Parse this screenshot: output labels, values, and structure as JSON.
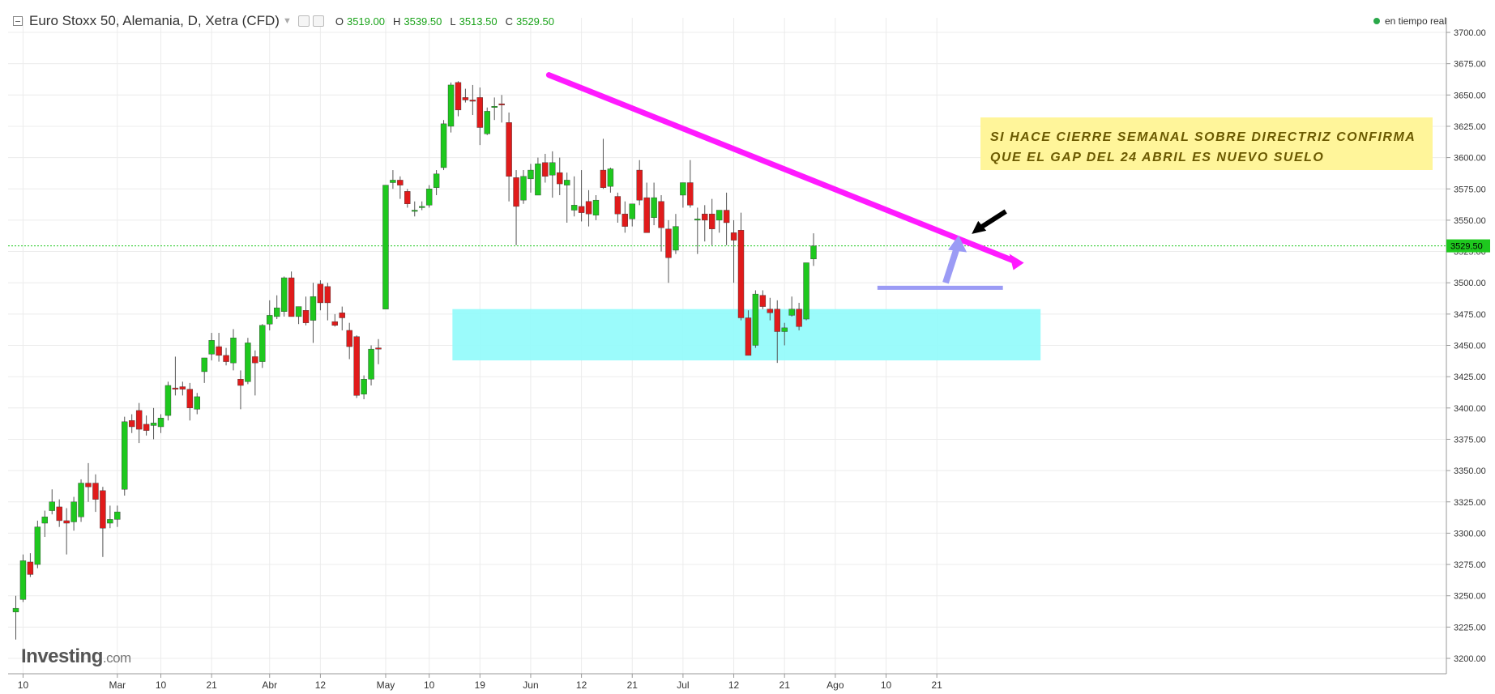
{
  "header": {
    "title": "Euro Stoxx 50, Alemania, D, Xetra (CFD)",
    "ohlc": [
      {
        "key": "O",
        "value": "3519.00"
      },
      {
        "key": "H",
        "value": "3539.50"
      },
      {
        "key": "L",
        "value": "3513.50"
      },
      {
        "key": "C",
        "value": "3529.50"
      }
    ],
    "realtime_label": "en tiempo real"
  },
  "logo": {
    "text": "Investing",
    "suffix": ".com"
  },
  "annotation": {
    "line1": "SI HACE CIERRE SEMANAL SOBRE DIRECTRIZ CONFIRMA",
    "line2": "QUE EL GAP DEL 24 ABRIL ES  NUEVO SUELO"
  },
  "colors": {
    "up": "#1ec81e",
    "down": "#e01b1b",
    "trendline": "#ff1aff",
    "zone": "#96fbfb",
    "support_line": "#9b9bf5",
    "arrow_blue": "#9b9bf5",
    "price_tag": "#1ec81e",
    "grid": "#ececec"
  },
  "chart_data": {
    "type": "candlestick",
    "ylim": [
      3190,
      3710
    ],
    "y_ticks": [
      "3700.00",
      "3675.00",
      "3650.00",
      "3625.00",
      "3600.00",
      "3575.00",
      "3550.00",
      "3525.00",
      "3500.00",
      "3475.00",
      "3450.00",
      "3425.00",
      "3400.00",
      "3375.00",
      "3350.00",
      "3325.00",
      "3300.00",
      "3275.00",
      "3250.00",
      "3225.00",
      "3200.00"
    ],
    "x_ticks": [
      {
        "label": "10",
        "i": 1
      },
      {
        "label": "Mar",
        "i": 14
      },
      {
        "label": "10",
        "i": 20
      },
      {
        "label": "21",
        "i": 27
      },
      {
        "label": "Abr",
        "i": 35
      },
      {
        "label": "12",
        "i": 42
      },
      {
        "label": "May",
        "i": 51
      },
      {
        "label": "10",
        "i": 57
      },
      {
        "label": "19",
        "i": 64
      },
      {
        "label": "Jun",
        "i": 71
      },
      {
        "label": "12",
        "i": 78
      },
      {
        "label": "21",
        "i": 85
      },
      {
        "label": "Jul",
        "i": 92
      },
      {
        "label": "12",
        "i": 99
      },
      {
        "label": "21",
        "i": 106
      },
      {
        "label": "Ago",
        "i": 113
      },
      {
        "label": "10",
        "i": 120
      },
      {
        "label": "21",
        "i": 127
      }
    ],
    "last_price": 3529.5,
    "candles": [
      {
        "o": 3237,
        "h": 3250,
        "l": 3215,
        "c": 3240
      },
      {
        "o": 3247,
        "h": 3283,
        "l": 3245,
        "c": 3278
      },
      {
        "o": 3277,
        "h": 3284,
        "l": 3265,
        "c": 3267
      },
      {
        "o": 3275,
        "h": 3310,
        "l": 3272,
        "c": 3305
      },
      {
        "o": 3308,
        "h": 3318,
        "l": 3297,
        "c": 3313
      },
      {
        "o": 3318,
        "h": 3335,
        "l": 3315,
        "c": 3325
      },
      {
        "o": 3321,
        "h": 3327,
        "l": 3305,
        "c": 3310
      },
      {
        "o": 3310,
        "h": 3320,
        "l": 3283,
        "c": 3308
      },
      {
        "o": 3309,
        "h": 3329,
        "l": 3302,
        "c": 3325
      },
      {
        "o": 3313,
        "h": 3343,
        "l": 3309,
        "c": 3340
      },
      {
        "o": 3340,
        "h": 3356,
        "l": 3325,
        "c": 3337
      },
      {
        "o": 3340,
        "h": 3347,
        "l": 3317,
        "c": 3327
      },
      {
        "o": 3334,
        "h": 3337,
        "l": 3281,
        "c": 3304
      },
      {
        "o": 3308,
        "h": 3322,
        "l": 3304,
        "c": 3311
      },
      {
        "o": 3311,
        "h": 3322,
        "l": 3305,
        "c": 3317
      },
      {
        "o": 3335,
        "h": 3393,
        "l": 3330,
        "c": 3389
      },
      {
        "o": 3390,
        "h": 3395,
        "l": 3380,
        "c": 3385
      },
      {
        "o": 3398,
        "h": 3404,
        "l": 3372,
        "c": 3383
      },
      {
        "o": 3387,
        "h": 3394,
        "l": 3378,
        "c": 3382
      },
      {
        "o": 3386,
        "h": 3400,
        "l": 3375,
        "c": 3388
      },
      {
        "o": 3385,
        "h": 3395,
        "l": 3380,
        "c": 3392
      },
      {
        "o": 3394,
        "h": 3421,
        "l": 3390,
        "c": 3418
      },
      {
        "o": 3416,
        "h": 3441,
        "l": 3410,
        "c": 3415
      },
      {
        "o": 3417,
        "h": 3421,
        "l": 3410,
        "c": 3415
      },
      {
        "o": 3415,
        "h": 3420,
        "l": 3390,
        "c": 3400
      },
      {
        "o": 3399,
        "h": 3412,
        "l": 3395,
        "c": 3409
      },
      {
        "o": 3429,
        "h": 3440,
        "l": 3420,
        "c": 3440
      },
      {
        "o": 3443,
        "h": 3460,
        "l": 3438,
        "c": 3454
      },
      {
        "o": 3449,
        "h": 3460,
        "l": 3437,
        "c": 3442
      },
      {
        "o": 3442,
        "h": 3448,
        "l": 3434,
        "c": 3437
      },
      {
        "o": 3436,
        "h": 3463,
        "l": 3430,
        "c": 3456
      },
      {
        "o": 3423,
        "h": 3430,
        "l": 3399,
        "c": 3418
      },
      {
        "o": 3421,
        "h": 3456,
        "l": 3419,
        "c": 3452
      },
      {
        "o": 3441,
        "h": 3446,
        "l": 3410,
        "c": 3436
      },
      {
        "o": 3437,
        "h": 3467,
        "l": 3432,
        "c": 3466
      },
      {
        "o": 3467,
        "h": 3486,
        "l": 3462,
        "c": 3474
      },
      {
        "o": 3473,
        "h": 3490,
        "l": 3471,
        "c": 3480
      },
      {
        "o": 3477,
        "h": 3505,
        "l": 3473,
        "c": 3504
      },
      {
        "o": 3504,
        "h": 3509,
        "l": 3473,
        "c": 3473
      },
      {
        "o": 3473,
        "h": 3481,
        "l": 3467,
        "c": 3481
      },
      {
        "o": 3478,
        "h": 3489,
        "l": 3466,
        "c": 3468
      },
      {
        "o": 3470,
        "h": 3500,
        "l": 3452,
        "c": 3489
      },
      {
        "o": 3499,
        "h": 3502,
        "l": 3478,
        "c": 3484
      },
      {
        "o": 3497,
        "h": 3500,
        "l": 3470,
        "c": 3484
      },
      {
        "o": 3469,
        "h": 3475,
        "l": 3465,
        "c": 3466
      },
      {
        "o": 3476,
        "h": 3481,
        "l": 3462,
        "c": 3472
      },
      {
        "o": 3462,
        "h": 3468,
        "l": 3439,
        "c": 3449
      },
      {
        "o": 3457,
        "h": 3458,
        "l": 3408,
        "c": 3410
      },
      {
        "o": 3411,
        "h": 3426,
        "l": 3407,
        "c": 3423
      },
      {
        "o": 3423,
        "h": 3450,
        "l": 3418,
        "c": 3447
      },
      {
        "o": 3448,
        "h": 3455,
        "l": 3435,
        "c": 3447
      },
      {
        "o": 3479,
        "h": 3578,
        "l": 3479,
        "c": 3578
      },
      {
        "o": 3580,
        "h": 3590,
        "l": 3575,
        "c": 3582
      },
      {
        "o": 3582,
        "h": 3585,
        "l": 3567,
        "c": 3578
      },
      {
        "o": 3573,
        "h": 3575,
        "l": 3560,
        "c": 3563
      },
      {
        "o": 3558,
        "h": 3565,
        "l": 3553,
        "c": 3558
      },
      {
        "o": 3560,
        "h": 3565,
        "l": 3558,
        "c": 3561
      },
      {
        "o": 3562,
        "h": 3578,
        "l": 3560,
        "c": 3575
      },
      {
        "o": 3576,
        "h": 3590,
        "l": 3570,
        "c": 3587
      },
      {
        "o": 3592,
        "h": 3630,
        "l": 3590,
        "c": 3627
      },
      {
        "o": 3625,
        "h": 3660,
        "l": 3620,
        "c": 3658
      },
      {
        "o": 3660,
        "h": 3661,
        "l": 3633,
        "c": 3638
      },
      {
        "o": 3648,
        "h": 3655,
        "l": 3644,
        "c": 3646
      },
      {
        "o": 3646,
        "h": 3658,
        "l": 3634,
        "c": 3645
      },
      {
        "o": 3648,
        "h": 3656,
        "l": 3610,
        "c": 3624
      },
      {
        "o": 3619,
        "h": 3640,
        "l": 3618,
        "c": 3637
      },
      {
        "o": 3641,
        "h": 3648,
        "l": 3630,
        "c": 3641
      },
      {
        "o": 3643,
        "h": 3650,
        "l": 3628,
        "c": 3642
      },
      {
        "o": 3628,
        "h": 3636,
        "l": 3565,
        "c": 3585
      },
      {
        "o": 3584,
        "h": 3590,
        "l": 3530,
        "c": 3561
      },
      {
        "o": 3566,
        "h": 3590,
        "l": 3563,
        "c": 3585
      },
      {
        "o": 3583,
        "h": 3595,
        "l": 3572,
        "c": 3590
      },
      {
        "o": 3570,
        "h": 3600,
        "l": 3570,
        "c": 3595
      },
      {
        "o": 3596,
        "h": 3603,
        "l": 3580,
        "c": 3585
      },
      {
        "o": 3586,
        "h": 3605,
        "l": 3568,
        "c": 3596
      },
      {
        "o": 3588,
        "h": 3600,
        "l": 3570,
        "c": 3579
      },
      {
        "o": 3578,
        "h": 3588,
        "l": 3548,
        "c": 3582
      },
      {
        "o": 3558,
        "h": 3585,
        "l": 3553,
        "c": 3562
      },
      {
        "o": 3561,
        "h": 3590,
        "l": 3549,
        "c": 3556
      },
      {
        "o": 3565,
        "h": 3574,
        "l": 3545,
        "c": 3555
      },
      {
        "o": 3554,
        "h": 3570,
        "l": 3550,
        "c": 3566
      },
      {
        "o": 3590,
        "h": 3615,
        "l": 3575,
        "c": 3576
      },
      {
        "o": 3577,
        "h": 3592,
        "l": 3572,
        "c": 3591
      },
      {
        "o": 3569,
        "h": 3572,
        "l": 3548,
        "c": 3555
      },
      {
        "o": 3555,
        "h": 3565,
        "l": 3540,
        "c": 3545
      },
      {
        "o": 3551,
        "h": 3558,
        "l": 3545,
        "c": 3563
      },
      {
        "o": 3590,
        "h": 3598,
        "l": 3562,
        "c": 3566
      },
      {
        "o": 3568,
        "h": 3580,
        "l": 3545,
        "c": 3540
      },
      {
        "o": 3552,
        "h": 3580,
        "l": 3546,
        "c": 3568
      },
      {
        "o": 3565,
        "h": 3570,
        "l": 3525,
        "c": 3544
      },
      {
        "o": 3543,
        "h": 3550,
        "l": 3500,
        "c": 3520
      },
      {
        "o": 3526,
        "h": 3555,
        "l": 3523,
        "c": 3545
      },
      {
        "o": 3570,
        "h": 3580,
        "l": 3560,
        "c": 3580
      },
      {
        "o": 3580,
        "h": 3598,
        "l": 3560,
        "c": 3562
      },
      {
        "o": 3550,
        "h": 3560,
        "l": 3523,
        "c": 3551
      },
      {
        "o": 3555,
        "h": 3562,
        "l": 3533,
        "c": 3550
      },
      {
        "o": 3555,
        "h": 3567,
        "l": 3530,
        "c": 3543
      },
      {
        "o": 3550,
        "h": 3556,
        "l": 3540,
        "c": 3558
      },
      {
        "o": 3558,
        "h": 3572,
        "l": 3530,
        "c": 3548
      },
      {
        "o": 3540,
        "h": 3550,
        "l": 3500,
        "c": 3534
      },
      {
        "o": 3542,
        "h": 3556,
        "l": 3470,
        "c": 3472
      },
      {
        "o": 3472,
        "h": 3478,
        "l": 3442,
        "c": 3442
      },
      {
        "o": 3450,
        "h": 3494,
        "l": 3448,
        "c": 3491
      },
      {
        "o": 3490,
        "h": 3494,
        "l": 3479,
        "c": 3481
      },
      {
        "o": 3479,
        "h": 3488,
        "l": 3470,
        "c": 3476
      },
      {
        "o": 3479,
        "h": 3486,
        "l": 3436,
        "c": 3461
      },
      {
        "o": 3461,
        "h": 3468,
        "l": 3450,
        "c": 3464
      },
      {
        "o": 3474,
        "h": 3489,
        "l": 3473,
        "c": 3479
      },
      {
        "o": 3479,
        "h": 3484,
        "l": 3462,
        "c": 3465
      },
      {
        "o": 3471,
        "h": 3516,
        "l": 3470,
        "c": 3516
      },
      {
        "o": 3519,
        "h": 3539.5,
        "l": 3513.5,
        "c": 3529.5
      }
    ]
  }
}
